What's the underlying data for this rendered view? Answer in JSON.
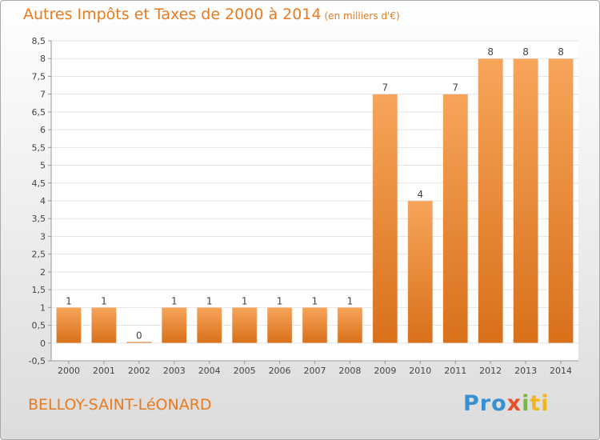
{
  "title": "Autres Impôts et Taxes de 2000 à 2014",
  "unit_label": "(en milliers d'€)",
  "commune": "BELLOY-SAINT-LéONARD",
  "logo": {
    "parts": [
      "Pro",
      "x",
      "i",
      "ti"
    ],
    "colors": [
      "#3a8fd1",
      "#e94f2b",
      "#7ab648",
      "#f2b51c"
    ]
  },
  "colors": {
    "bar": "#f0943a",
    "text_accent": "#e87a20",
    "grid": "#e3e3e3",
    "axis": "#999999"
  },
  "chart_data": {
    "type": "bar",
    "categories": [
      "2000",
      "2001",
      "2002",
      "2003",
      "2004",
      "2005",
      "2006",
      "2007",
      "2008",
      "2009",
      "2010",
      "2011",
      "2012",
      "2013",
      "2014"
    ],
    "values": [
      1,
      1,
      0,
      1,
      1,
      1,
      1,
      1,
      1,
      7,
      4,
      7,
      8,
      8,
      8
    ],
    "data_labels": [
      "1",
      "1",
      "0",
      "1",
      "1",
      "1",
      "1",
      "1",
      "1",
      "7",
      "4",
      "7",
      "8",
      "8",
      "8"
    ],
    "y_ticks": [
      "-0,5",
      "0",
      "0,5",
      "1",
      "1,5",
      "2",
      "2,5",
      "3",
      "3,5",
      "4",
      "4,5",
      "5",
      "5,5",
      "6",
      "6,5",
      "7",
      "7,5",
      "8",
      "8,5"
    ],
    "ylim": [
      -0.5,
      8.5
    ],
    "grid": true
  }
}
